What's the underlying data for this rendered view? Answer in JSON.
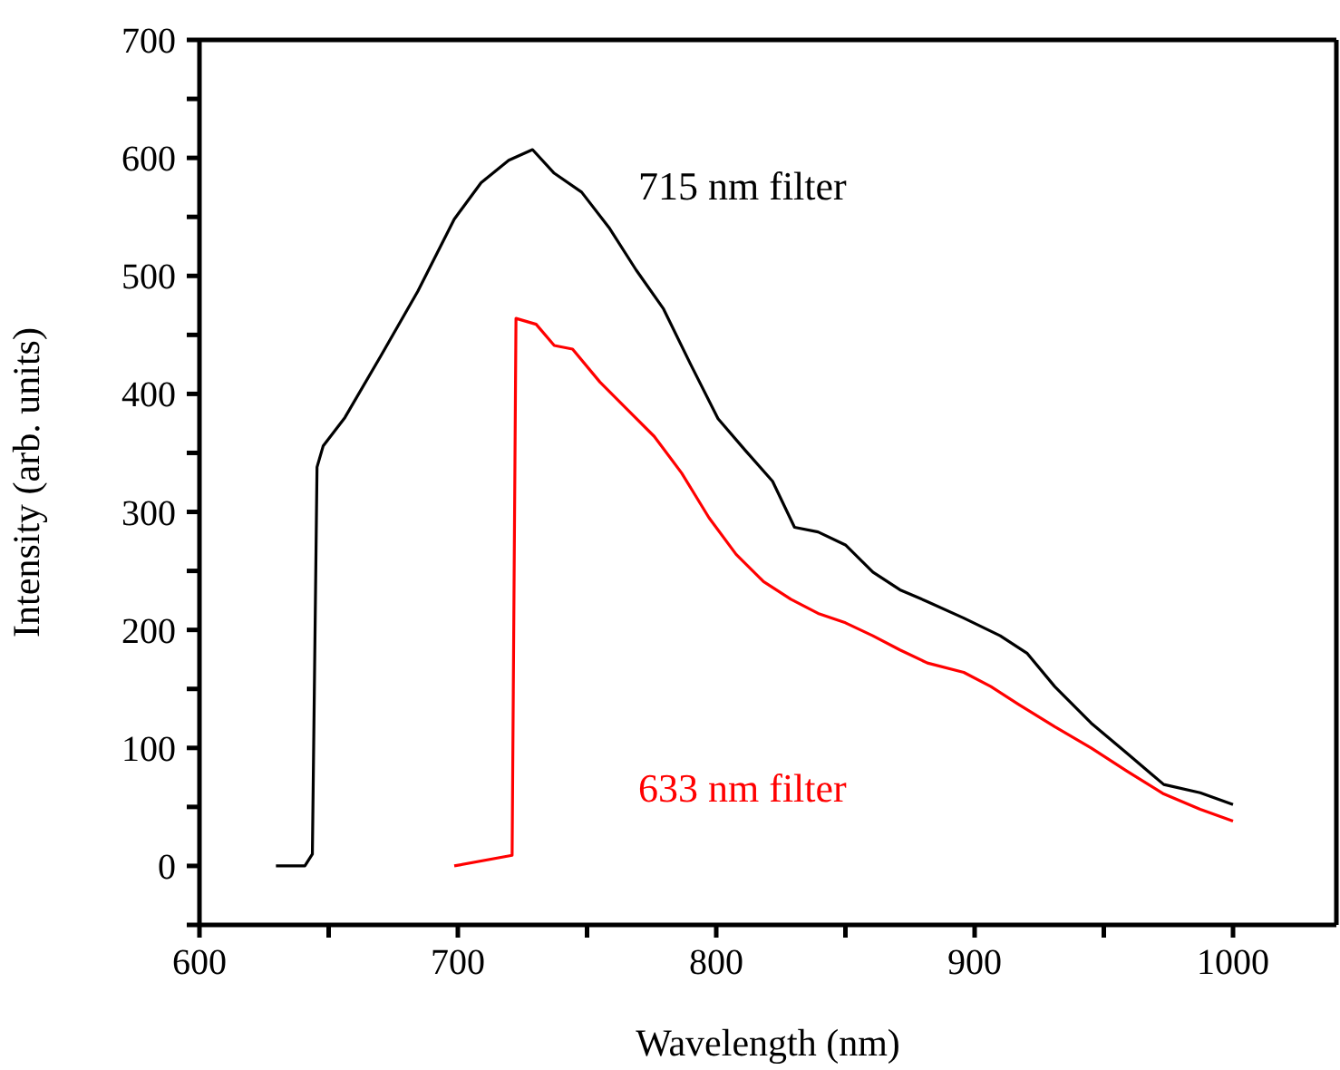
{
  "chart_data": {
    "type": "line",
    "xlabel": "Wavelength (nm)",
    "ylabel": "Intensity (arb. units)",
    "xlim": [
      600,
      1040
    ],
    "ylim": [
      -50,
      700
    ],
    "xticks": [
      600,
      {
        "value": 650,
        "label": null
      },
      700,
      {
        "value": 750,
        "label": null
      },
      800,
      {
        "value": 850,
        "label": null
      },
      900,
      {
        "value": 950,
        "label": null
      },
      1000
    ],
    "yticks": [
      {
        "value": -50,
        "label": null
      },
      0,
      {
        "value": 50,
        "label": null
      },
      100,
      {
        "value": 150,
        "label": null
      },
      200,
      {
        "value": 250,
        "label": null
      },
      300,
      {
        "value": 350,
        "label": null
      },
      400,
      {
        "value": 450,
        "label": null
      },
      500,
      {
        "value": 550,
        "label": null
      },
      600,
      {
        "value": 650,
        "label": null
      },
      700
    ],
    "grid": false,
    "marker": "none",
    "line_style": "solid",
    "series": [
      {
        "name": "715 nm filter",
        "color": "#000000",
        "x": [
          629.6,
          640.8,
          643.7,
          645.5,
          647.9,
          656.3,
          670.4,
          684.5,
          698.6,
          709,
          719.7,
          728.9,
          737.3,
          747.9,
          758.5,
          769,
          779.6,
          790.1,
          800.7,
          811.3,
          821.8,
          830.3,
          839.4,
          850,
          860.6,
          871.1,
          881.7,
          895.8,
          909.9,
          920.4,
          931,
          945.1,
          959.2,
          973.2,
          987.3,
          1000
        ],
        "values": [
          0,
          0,
          10,
          338,
          356,
          380,
          433,
          487,
          548,
          579,
          598,
          607,
          587,
          571,
          541,
          505,
          472,
          425,
          379,
          352,
          326,
          287,
          283,
          272,
          249,
          234,
          224,
          210,
          195,
          180,
          152,
          121,
          95,
          69,
          62,
          52
        ]
      },
      {
        "name": "633 nm filter",
        "color": "#ff0000",
        "x": [
          698.6,
          721,
          722.5,
          730.3,
          737.3,
          744.4,
          755,
          765.5,
          776,
          786.6,
          797.2,
          807.7,
          818.3,
          828.9,
          839.4,
          850,
          860.6,
          871.1,
          881.7,
          895.8,
          906.3,
          916.9,
          931,
          945.1,
          959.2,
          973.2,
          987.3,
          1000
        ],
        "values": [
          0,
          9,
          464,
          459,
          441,
          438,
          410,
          387,
          364,
          333,
          295,
          264,
          241,
          226,
          214,
          206,
          195,
          183,
          172,
          164,
          152,
          137,
          118,
          100,
          80,
          61,
          48,
          38
        ]
      }
    ]
  }
}
